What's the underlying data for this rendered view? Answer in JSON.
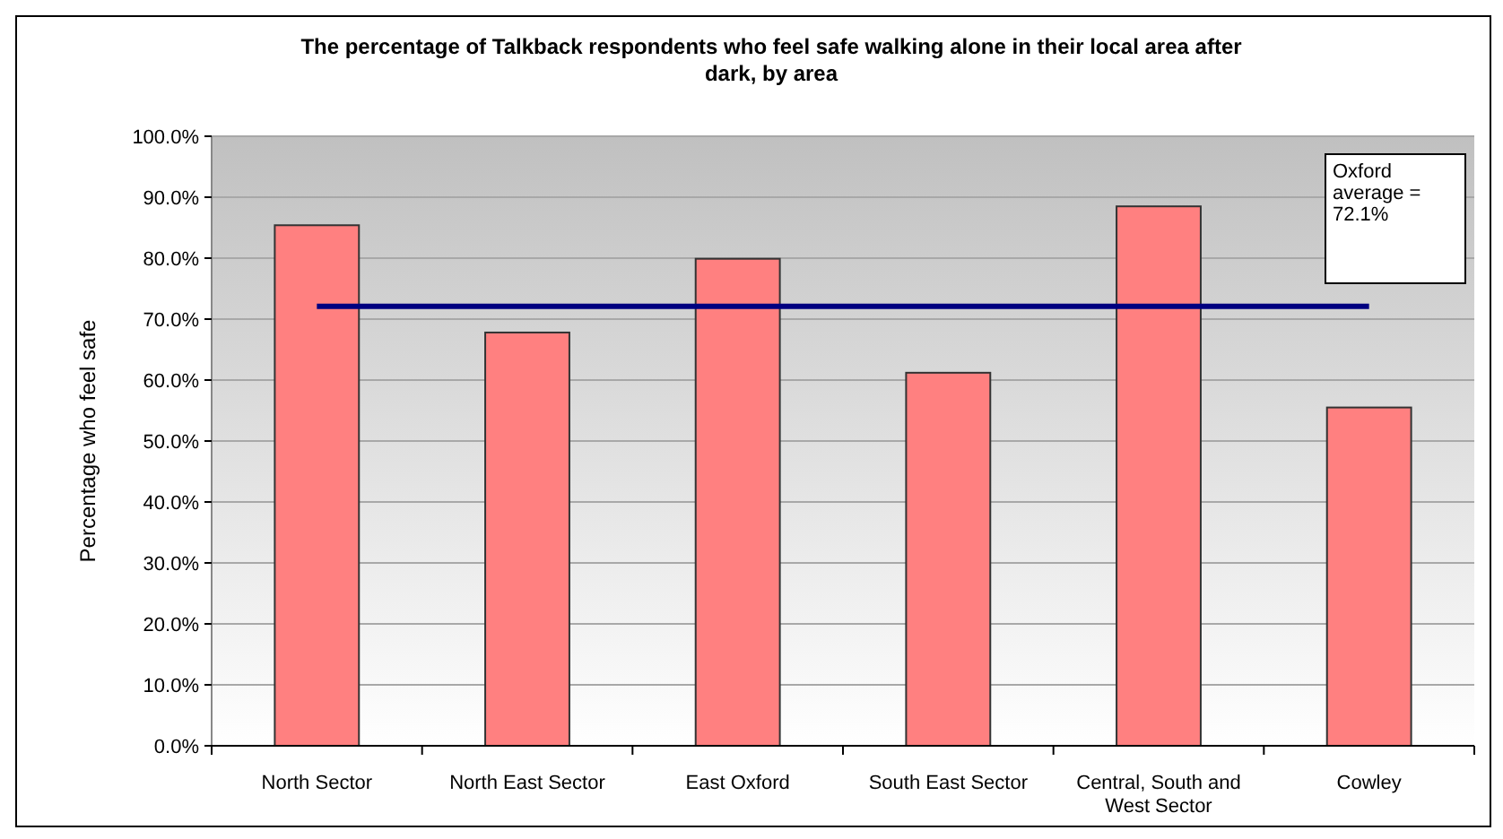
{
  "chart_data": {
    "type": "bar",
    "title": "The percentage of Talkback respondents who feel safe walking alone in their local area after dark, by area",
    "ylabel": "Percentage who feel safe",
    "categories": [
      "North Sector",
      "North East Sector",
      "East Oxford",
      "South East Sector",
      "Central, South and West Sector",
      "Cowley"
    ],
    "series": [
      {
        "color": "#ff8080",
        "values": [
          85.4,
          67.8,
          79.9,
          61.2,
          88.5,
          55.5
        ]
      },
      {
        "type": "line",
        "color": "#000080",
        "values": [
          72.1,
          72.1,
          72.1,
          72.1,
          72.1,
          72.1
        ]
      }
    ],
    "annotations": [
      "Oxford average = 72.1%"
    ],
    "ylim": [
      0,
      100
    ],
    "yticks": [
      {
        "value": 0,
        "label": "0.0%"
      },
      {
        "value": 10,
        "label": "10.0%"
      },
      {
        "value": 20,
        "label": "20.0%"
      },
      {
        "value": 30,
        "label": "30.0%"
      },
      {
        "value": 40,
        "label": "40.0%"
      },
      {
        "value": 50,
        "label": "50.0%"
      },
      {
        "value": 60,
        "label": "60.0%"
      },
      {
        "value": 70,
        "label": "70.0%"
      },
      {
        "value": 80,
        "label": "80.0%"
      },
      {
        "value": 90,
        "label": "90.0%"
      },
      {
        "value": 100,
        "label": "100.0%"
      }
    ],
    "grid": "y",
    "marker": "none",
    "line_style": "solid"
  }
}
